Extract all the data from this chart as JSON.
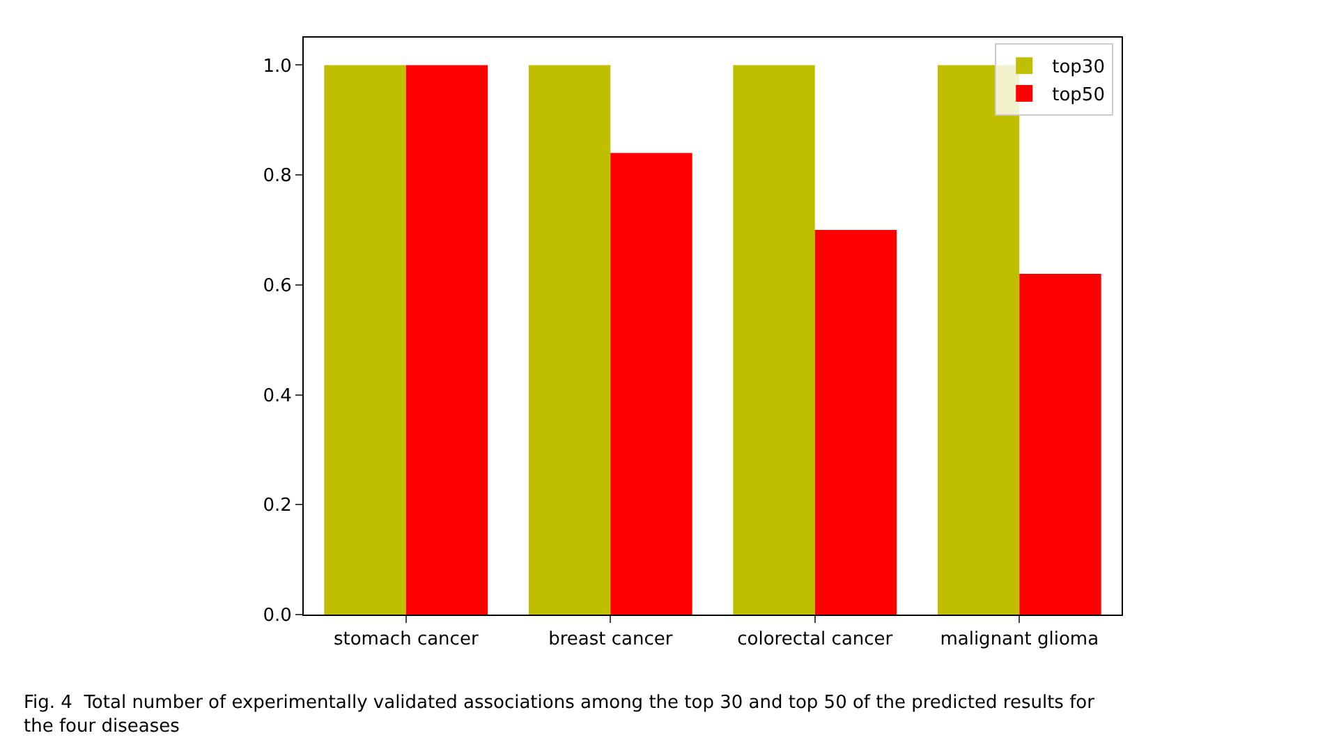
{
  "chart_data": {
    "type": "bar",
    "categories": [
      "stomach cancer",
      "breast cancer",
      "colorectal cancer",
      "malignant glioma"
    ],
    "series": [
      {
        "name": "top30",
        "color": "#bfbf00",
        "values": [
          1.0,
          1.0,
          1.0,
          1.0
        ]
      },
      {
        "name": "top50",
        "color": "#ff0000",
        "values": [
          1.0,
          0.84,
          0.7,
          0.62
        ]
      }
    ],
    "ylim": [
      0,
      1.05
    ],
    "yticks": [
      {
        "value": 0,
        "label": "0.0"
      },
      {
        "value": 0.2,
        "label": "0.2"
      },
      {
        "value": 0.4,
        "label": "0.4"
      },
      {
        "value": 0.6,
        "label": "0.6"
      },
      {
        "value": 0.8,
        "label": "0.8"
      },
      {
        "value": 1.0,
        "label": "1.0"
      }
    ],
    "legend": "top right",
    "annotations": [
      "Fig. 4  Total number of experimentally validated associations among the top 30 and top 50 of the predicted results for the four diseases"
    ]
  }
}
